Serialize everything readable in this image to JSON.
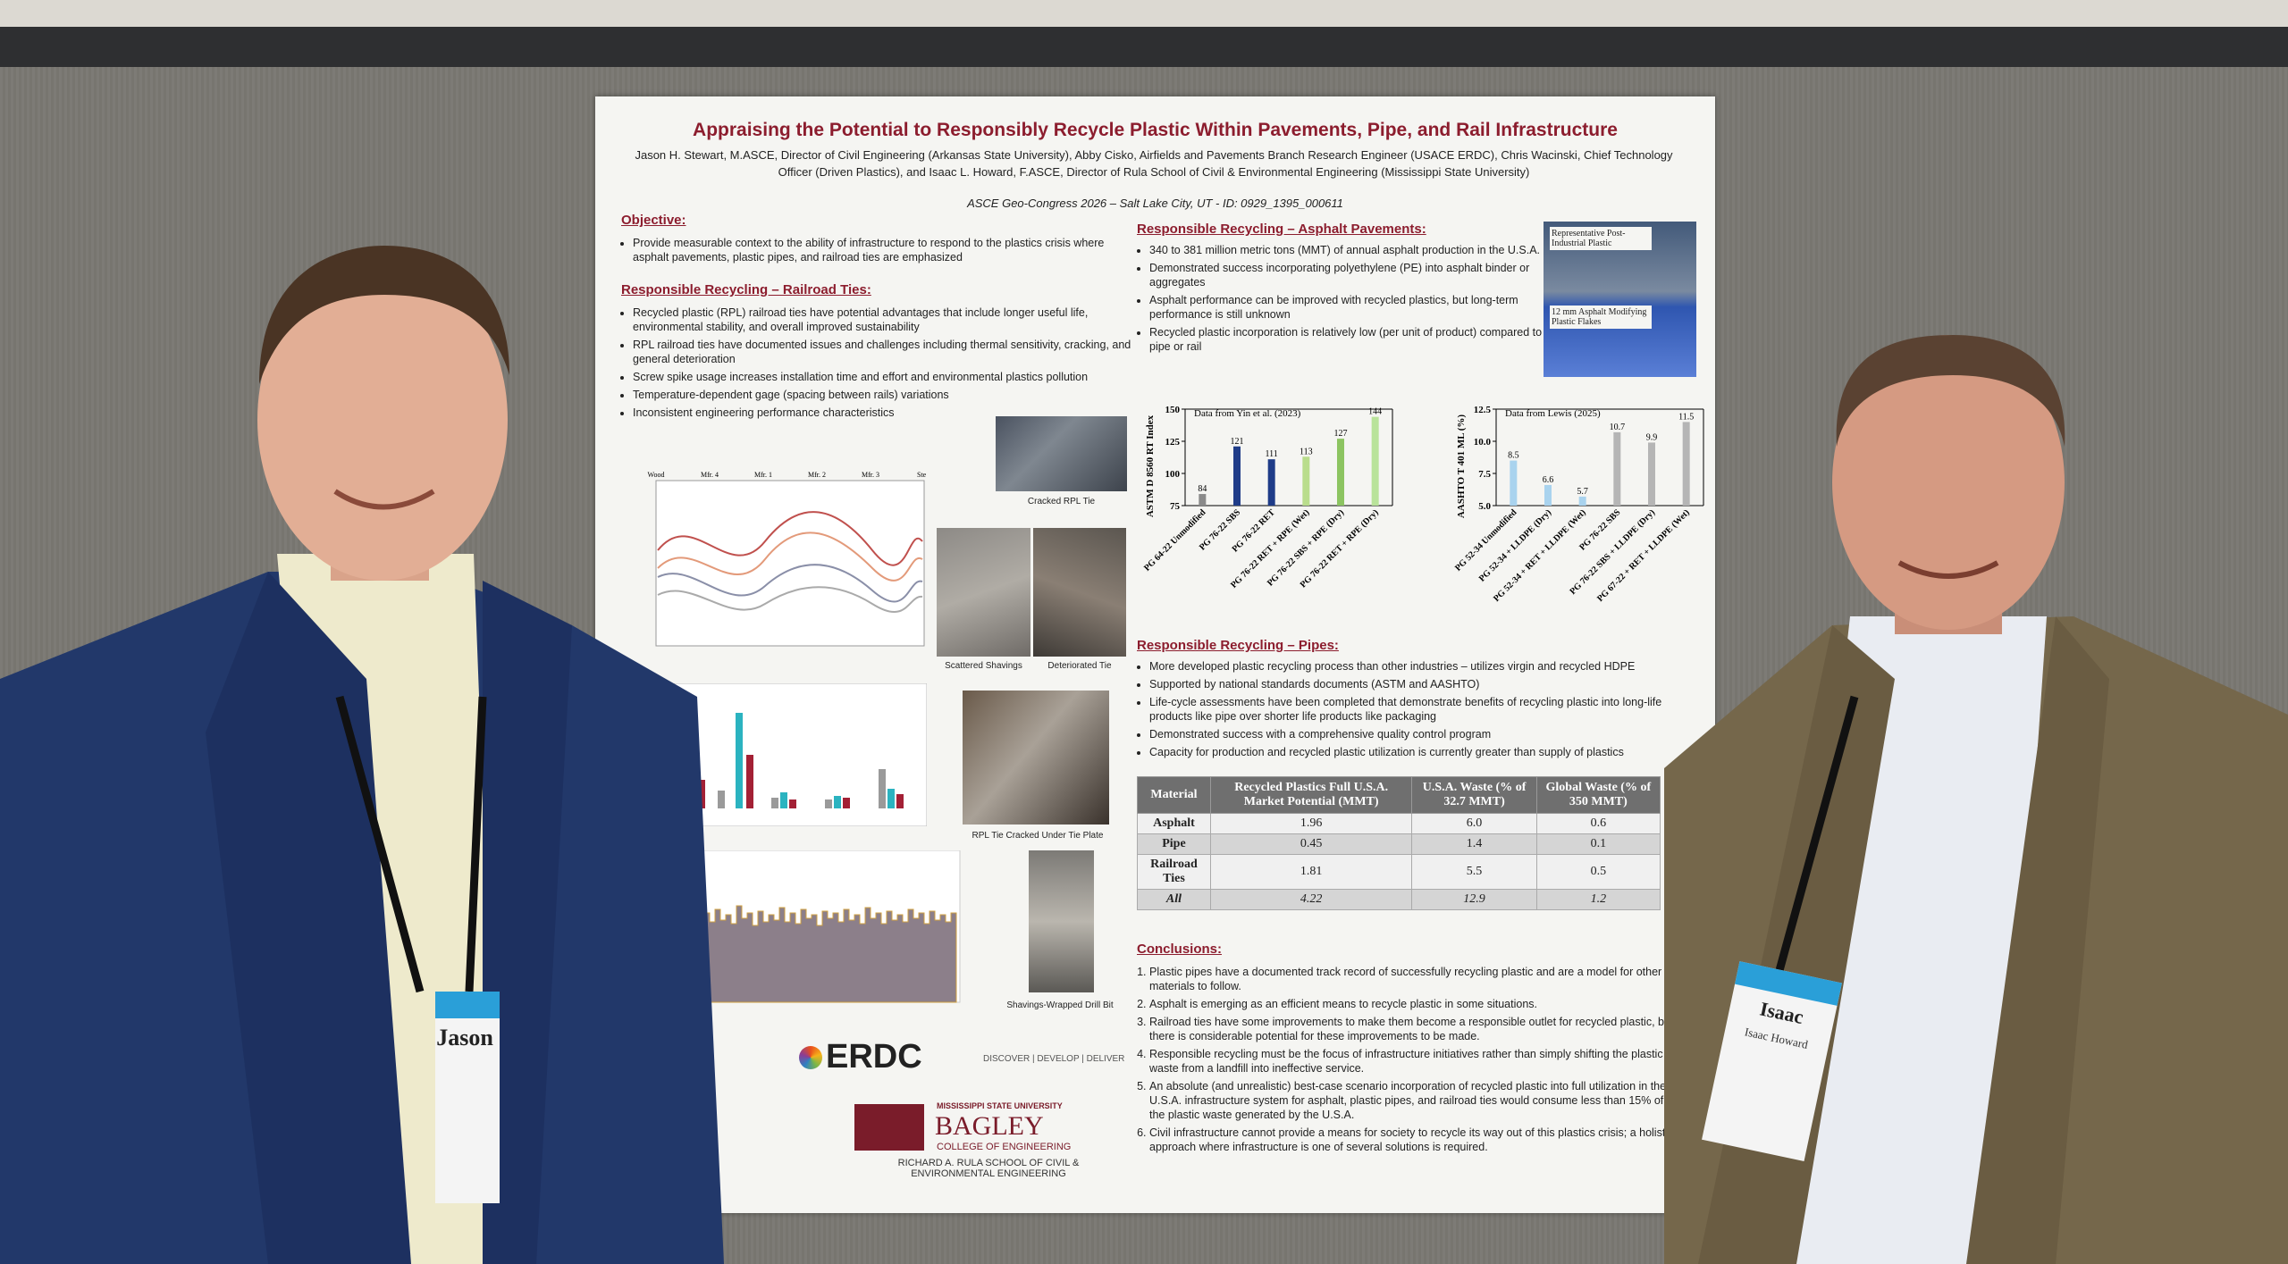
{
  "poster": {
    "title": "Appraising the Potential to Responsibly Recycle Plastic Within Pavements, Pipe, and Rail Infrastructure",
    "authors": "Jason H. Stewart, M.ASCE, Director of Civil Engineering (Arkansas State University), Abby Cisko, Airfields and Pavements Branch Research Engineer (USACE ERDC), Chris Wacinski, Chief Technology Officer (Driven Plastics), and Isaac L. Howard, F.ASCE, Director of Rula School of Civil & Environmental Engineering (Mississippi State University)",
    "conference": "ASCE Geo-Congress 2026 – Salt Lake City, UT - ID: 0929_1395_000611",
    "objective": {
      "heading": "Objective:",
      "bullets": [
        "Provide measurable context to the ability of infrastructure to respond to the plastics crisis where asphalt pavements, plastic pipes, and railroad ties are emphasized"
      ]
    },
    "railroad": {
      "heading": "Responsible Recycling – Railroad Ties:",
      "bullets": [
        "Recycled plastic (RPL) railroad ties have potential advantages that include longer useful life, environmental stability, and overall improved sustainability",
        "RPL railroad ties have documented issues and challenges including thermal sensitivity, cracking, and general deterioration",
        "Screw spike usage increases installation time and effort and environmental plastics pollution",
        "Temperature-dependent gage (spacing between rails) variations",
        "Inconsistent engineering performance characteristics"
      ],
      "line_chart_labels": [
        "Wood",
        "Mfr. 4",
        "Mfr. 1",
        "Mfr. 2",
        "Mfr. 3",
        "Steel"
      ],
      "captions": [
        "Cracked RPL Tie",
        "Scattered Shavings",
        "Deteriorated Tie",
        "RPL Tie Cracked Under Tie Plate",
        "Shavings-Wrapped Drill Bit"
      ]
    },
    "asphalt": {
      "heading": "Responsible Recycling – Asphalt Pavements:",
      "bullets": [
        "340 to 381 million metric tons (MMT) of annual asphalt production in the U.S.A.",
        "Demonstrated success incorporating polyethylene (PE) into asphalt binder or aggregates",
        "Asphalt performance can be improved with recycled plastics, but long-term performance is still unknown",
        "Recycled plastic incorporation is relatively low (per unit of product) compared to pipe or rail"
      ],
      "image_labels": [
        "Representative Post-Industrial Plastic",
        "12 mm Asphalt Modifying Plastic Flakes"
      ],
      "charts": [
        {
          "type": "bar",
          "note": "Data from Yin et al. (2023)",
          "y_label": "ASTM D 8560 RT Index",
          "categories": [
            "PG 64-22 Unmodified",
            "PG 76-22 SBS",
            "PG 76-22 RET",
            "PG 76-22 RET + RPE (Wet)",
            "PG 76-22 SBS + RPE (Dry)",
            "PG 76-22 RET + RPE (Dry)"
          ],
          "values": [
            84,
            121,
            111,
            113,
            127,
            144
          ],
          "colors": [
            "#8a8a8a",
            "#1f3c88",
            "#1f3c88",
            "#b9dd8c",
            "#8cc461",
            "#b9e39a"
          ],
          "ylim": [
            75,
            150
          ],
          "yticks": [
            75,
            100,
            125,
            150
          ]
        },
        {
          "type": "bar",
          "note": "Data from Lewis (2025)",
          "y_label": "AASHTO T 401 ML (%)",
          "categories": [
            "PG 52-34 Unmodified",
            "PG 52-34 + LLDPE (Dry)",
            "PG 52-34 + RET + LLDPE (Wet)",
            "PG 76-22 SBS",
            "PG 76-22 SBS + LLDPE (Dry)",
            "PG 67-22 + RET + LLDPE (Wet)"
          ],
          "values": [
            8.5,
            6.6,
            5.7,
            10.7,
            9.9,
            11.5
          ],
          "colors": [
            "#a9d3ee",
            "#a9d3ee",
            "#a9d3ee",
            "#b5b5b5",
            "#b5b5b5",
            "#b5b5b5"
          ],
          "ylim": [
            5,
            12.5
          ],
          "yticks": [
            {
              "value": 5,
              "label": "5.0"
            },
            {
              "value": 7.5,
              "label": "7.5"
            },
            {
              "value": 10,
              "label": "10.0"
            },
            {
              "value": 12.5,
              "label": "12.5"
            }
          ]
        }
      ]
    },
    "pipes": {
      "heading": "Responsible Recycling – Pipes:",
      "bullets": [
        "More developed plastic recycling process than other industries – utilizes virgin and recycled HDPE",
        "Supported by national standards documents (ASTM and AASHTO)",
        "Life-cycle assessments have been completed that demonstrate benefits of recycling plastic into long-life products like pipe over shorter life products like packaging",
        "Demonstrated success with a comprehensive quality control program",
        "Capacity for production and recycled plastic utilization is currently greater than supply of plastics"
      ]
    },
    "table": {
      "headers": [
        "Material",
        "Recycled Plastics Full U.S.A. Market Potential (MMT)",
        "U.S.A. Waste (% of 32.7 MMT)",
        "Global Waste (% of 350 MMT)"
      ],
      "rows": [
        [
          "Asphalt",
          "1.96",
          "6.0",
          "0.6"
        ],
        [
          "Pipe",
          "0.45",
          "1.4",
          "0.1"
        ],
        [
          "Railroad Ties",
          "1.81",
          "5.5",
          "0.5"
        ],
        [
          "All",
          "4.22",
          "12.9",
          "1.2"
        ]
      ]
    },
    "conclusions": {
      "heading": "Conclusions:",
      "items": [
        "Plastic pipes have a documented track record of successfully recycling plastic and are a model for other materials to follow.",
        "Asphalt is emerging as an efficient means to recycle plastic in some situations.",
        "Railroad ties have some improvements to make them become a responsible outlet for recycled plastic, but there is considerable potential for these improvements to be made.",
        "Responsible recycling must be the focus of infrastructure initiatives rather than simply shifting the plastic waste from a landfill into ineffective service.",
        "An absolute (and unrealistic) best-case scenario incorporation of recycled plastic into full utilization in the U.S.A. infrastructure system for asphalt, plastic pipes, and railroad ties would consume less than 15% of the plastic waste generated by the U.S.A.",
        "Civil infrastructure cannot provide a means for society to recycle its way out of this plastics crisis; a holistic approach where infrastructure is one of several solutions is required."
      ]
    },
    "logos": {
      "erdc": "ERDC",
      "erdc_tagline": "DISCOVER | DEVELOP | DELIVER",
      "msu": "MISSISSIPPI STATE UNIVERSITY",
      "bagley": "BAGLEY",
      "college": "COLLEGE OF ENGINEERING",
      "rula": "RICHARD A. RULA SCHOOL OF CIVIL & ENVIRONMENTAL ENGINEERING"
    }
  },
  "badges": {
    "left": "Jason",
    "right_first": "Isaac",
    "right_full": "Isaac Howard"
  }
}
